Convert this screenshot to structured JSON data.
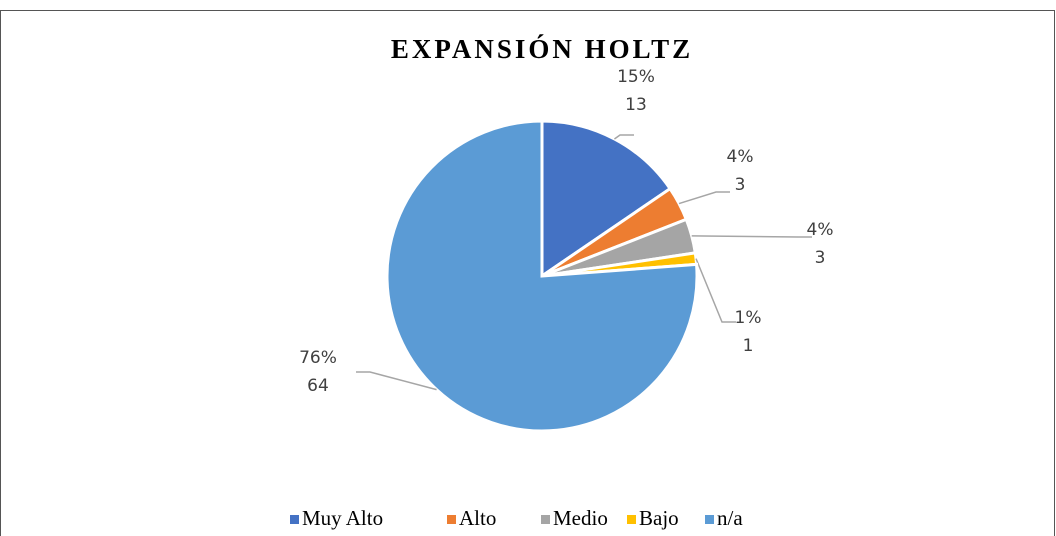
{
  "chart_data": {
    "type": "pie",
    "title": "EXPANSIÓN HOLTZ",
    "categories": [
      "Muy Alto",
      "Alto",
      "Medio",
      "Bajo",
      "n/a"
    ],
    "values": [
      13,
      3,
      3,
      1,
      64
    ],
    "percent_labels": [
      "15%",
      "4%",
      "4%",
      "1%",
      "76%"
    ],
    "colors": [
      "#4472c4",
      "#ed7d31",
      "#a5a5a5",
      "#ffc000",
      "#5b9bd5"
    ],
    "legend": "bottom"
  }
}
